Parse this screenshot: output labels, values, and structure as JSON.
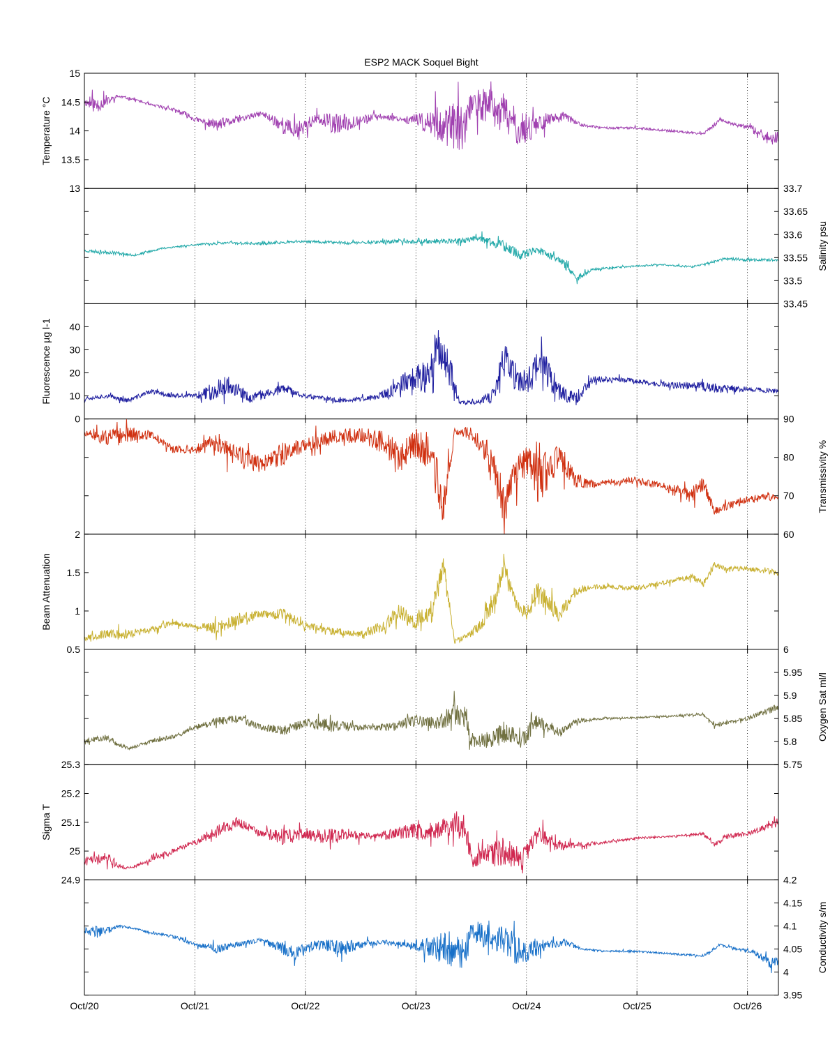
{
  "title": "ESP2 MACK  Soquel Bight",
  "x_axis": {
    "tick_labels": [
      "Oct/20",
      "Oct/21",
      "Oct/22",
      "Oct/23",
      "Oct/24",
      "Oct/25",
      "Oct/26"
    ],
    "tick_days": [
      0,
      1,
      2,
      3,
      4,
      5,
      6
    ],
    "range_days": [
      0,
      6.28
    ]
  },
  "chart_data": [
    {
      "type": "line",
      "ylabel": "Temperature °C",
      "axis_side": "left",
      "color": "#a040b0",
      "ylim": [
        13,
        15
      ],
      "yticks": [
        13,
        13.5,
        14,
        14.5,
        15
      ],
      "ytick_labels": [
        "13",
        "13.5",
        "14",
        "14.5",
        "15"
      ],
      "x": [
        0,
        0.1,
        0.2,
        0.3,
        0.45,
        0.6,
        0.75,
        0.9,
        1.0,
        1.2,
        1.4,
        1.6,
        1.8,
        1.9,
        2.1,
        2.3,
        2.5,
        2.7,
        2.9,
        3.1,
        3.3,
        3.45,
        3.5,
        3.6,
        3.8,
        3.95,
        4.05,
        4.2,
        4.35,
        4.5,
        4.7,
        5.0,
        5.3,
        5.6,
        5.7,
        5.75,
        5.9,
        6.05,
        6.2,
        6.28
      ],
      "y": [
        14.5,
        14.45,
        14.5,
        14.6,
        14.55,
        14.45,
        14.4,
        14.3,
        14.2,
        14.1,
        14.2,
        14.3,
        14.1,
        14.0,
        14.2,
        14.1,
        14.2,
        14.25,
        14.2,
        14.15,
        14.1,
        14.0,
        14.5,
        14.45,
        14.3,
        14.0,
        14.1,
        14.2,
        14.25,
        14.1,
        14.05,
        14.05,
        14.0,
        13.95,
        14.1,
        14.2,
        14.1,
        14.05,
        13.85,
        13.9
      ],
      "noise": [
        0.05,
        0.15,
        0.08,
        0.03,
        0.02,
        0.02,
        0.03,
        0.05,
        0.04,
        0.1,
        0.06,
        0.04,
        0.15,
        0.15,
        0.1,
        0.2,
        0.08,
        0.05,
        0.05,
        0.2,
        0.4,
        0.4,
        0.2,
        0.3,
        0.35,
        0.3,
        0.25,
        0.1,
        0.08,
        0.02,
        0.02,
        0.02,
        0.02,
        0.02,
        0.04,
        0.03,
        0.03,
        0.04,
        0.12,
        0.1
      ],
      "seed": 11
    },
    {
      "type": "line",
      "ylabel": "Salinity psu",
      "axis_side": "right",
      "color": "#20a8a8",
      "ylim": [
        33.45,
        33.7
      ],
      "yticks": [
        33.45,
        33.5,
        33.55,
        33.6,
        33.65,
        33.7
      ],
      "ytick_labels": [
        "33.45",
        "33.5",
        "33.55",
        "33.6",
        "33.65",
        "33.7"
      ],
      "x": [
        0,
        0.3,
        0.45,
        0.7,
        1.0,
        1.3,
        1.6,
        2.0,
        2.4,
        2.8,
        3.2,
        3.6,
        3.8,
        3.95,
        4.1,
        4.3,
        4.45,
        4.6,
        4.9,
        5.2,
        5.5,
        5.8,
        6.0,
        6.28
      ],
      "y": [
        33.565,
        33.56,
        33.555,
        33.57,
        33.578,
        33.582,
        33.58,
        33.585,
        33.582,
        33.585,
        33.585,
        33.59,
        33.575,
        33.555,
        33.565,
        33.545,
        33.505,
        33.525,
        33.53,
        33.535,
        33.53,
        33.548,
        33.545,
        33.545
      ],
      "noise": [
        0.003,
        0.004,
        0.002,
        0.002,
        0.002,
        0.003,
        0.003,
        0.002,
        0.004,
        0.004,
        0.005,
        0.008,
        0.012,
        0.01,
        0.01,
        0.01,
        0.008,
        0.003,
        0.002,
        0.002,
        0.002,
        0.003,
        0.003,
        0.003
      ],
      "seed": 23
    },
    {
      "type": "line",
      "ylabel": "Fluorescence µg l-1",
      "axis_side": "left",
      "color": "#2020a0",
      "ylim": [
        0,
        50
      ],
      "yticks": [
        0,
        10,
        20,
        30,
        40
      ],
      "ytick_labels": [
        "0",
        "10",
        "20",
        "30",
        "40"
      ],
      "x": [
        0,
        0.2,
        0.4,
        0.6,
        0.8,
        1.0,
        1.15,
        1.3,
        1.5,
        1.8,
        2.0,
        2.3,
        2.6,
        2.8,
        2.95,
        3.1,
        3.2,
        3.3,
        3.4,
        3.55,
        3.7,
        3.8,
        3.9,
        4.0,
        4.1,
        4.2,
        4.3,
        4.45,
        4.6,
        4.9,
        5.2,
        5.6,
        5.8,
        6.0,
        6.28
      ],
      "y": [
        9,
        10,
        8,
        12,
        10,
        10,
        12,
        15,
        9,
        13,
        10,
        8,
        9,
        12,
        18,
        18,
        32,
        22,
        7,
        7,
        10,
        26,
        18,
        15,
        24,
        20,
        12,
        9,
        17,
        17,
        15,
        14,
        13,
        13,
        12
      ],
      "noise": [
        1,
        1,
        1,
        1,
        1,
        1,
        4,
        4,
        2,
        2,
        1,
        1,
        1,
        3,
        5,
        7,
        8,
        8,
        1,
        1,
        3,
        8,
        6,
        6,
        8,
        7,
        4,
        3,
        2,
        1,
        1,
        2,
        2,
        1,
        1
      ],
      "seed": 37
    },
    {
      "type": "line",
      "ylabel": "Transmissivity %",
      "axis_side": "right",
      "color": "#d03010",
      "ylim": [
        60,
        90
      ],
      "yticks": [
        60,
        70,
        80,
        90
      ],
      "ytick_labels": [
        "60",
        "70",
        "80",
        "90"
      ],
      "x": [
        0,
        0.2,
        0.4,
        0.6,
        0.8,
        1.0,
        1.2,
        1.4,
        1.6,
        1.8,
        2.0,
        2.2,
        2.5,
        2.7,
        2.85,
        3.0,
        3.15,
        3.25,
        3.35,
        3.5,
        3.6,
        3.7,
        3.8,
        3.9,
        4.0,
        4.1,
        4.3,
        4.45,
        4.6,
        5.0,
        5.3,
        5.5,
        5.6,
        5.7,
        5.8,
        6.0,
        6.28
      ],
      "y": [
        86,
        85,
        86,
        86,
        82,
        82,
        84,
        80,
        78,
        81,
        83,
        85,
        86,
        84,
        80,
        84,
        80,
        66,
        87,
        86,
        83,
        78,
        67,
        76,
        80,
        74,
        80,
        74,
        73,
        74,
        72,
        70,
        73,
        66,
        67,
        69,
        70
      ],
      "noise": [
        1,
        2,
        2,
        1,
        1,
        1,
        3,
        3,
        2,
        3,
        2,
        2,
        2,
        3,
        4,
        4,
        6,
        6,
        1,
        2,
        3,
        5,
        5,
        4,
        5,
        6,
        4,
        2,
        1,
        1,
        1,
        2,
        2,
        1,
        1,
        1,
        1
      ],
      "seed": 51
    },
    {
      "type": "line",
      "ylabel": "Beam Attenuation",
      "axis_side": "left",
      "color": "#c8b030",
      "ylim": [
        0.5,
        2
      ],
      "yticks": [
        0.5,
        1,
        1.5,
        2
      ],
      "ytick_labels": [
        "0.5",
        "1",
        "1.5",
        "2"
      ],
      "x": [
        0,
        0.2,
        0.4,
        0.6,
        0.8,
        1.0,
        1.2,
        1.4,
        1.6,
        1.8,
        2.0,
        2.2,
        2.5,
        2.7,
        2.85,
        3.0,
        3.15,
        3.25,
        3.35,
        3.5,
        3.6,
        3.7,
        3.8,
        3.9,
        4.0,
        4.1,
        4.3,
        4.45,
        4.6,
        5.0,
        5.3,
        5.5,
        5.6,
        5.7,
        5.8,
        6.0,
        6.28
      ],
      "y": [
        0.65,
        0.7,
        0.7,
        0.75,
        0.85,
        0.8,
        0.78,
        0.9,
        0.95,
        0.95,
        0.82,
        0.75,
        0.7,
        0.8,
        1.0,
        0.85,
        1.0,
        1.6,
        0.6,
        0.7,
        0.85,
        1.1,
        1.55,
        1.15,
        0.95,
        1.25,
        0.95,
        1.25,
        1.32,
        1.3,
        1.38,
        1.45,
        1.35,
        1.6,
        1.55,
        1.55,
        1.5
      ],
      "noise": [
        0.03,
        0.06,
        0.06,
        0.04,
        0.04,
        0.03,
        0.08,
        0.08,
        0.05,
        0.08,
        0.04,
        0.05,
        0.04,
        0.08,
        0.1,
        0.1,
        0.15,
        0.15,
        0.03,
        0.05,
        0.08,
        0.12,
        0.12,
        0.1,
        0.12,
        0.15,
        0.1,
        0.05,
        0.03,
        0.03,
        0.03,
        0.04,
        0.04,
        0.04,
        0.03,
        0.03,
        0.04
      ],
      "seed": 67
    },
    {
      "type": "line",
      "ylabel": "Oxygen Sat ml/l",
      "axis_side": "right",
      "color": "#707040",
      "ylim": [
        5.75,
        6
      ],
      "yticks": [
        5.75,
        5.8,
        5.85,
        5.9,
        5.95,
        6
      ],
      "ytick_labels": [
        "5.75",
        "5.8",
        "5.85",
        "5.9",
        "5.95",
        "6"
      ],
      "x": [
        0,
        0.2,
        0.3,
        0.4,
        0.6,
        0.8,
        1.0,
        1.2,
        1.4,
        1.6,
        1.8,
        2.0,
        2.2,
        2.4,
        2.6,
        2.8,
        3.0,
        3.2,
        3.35,
        3.45,
        3.5,
        3.6,
        3.8,
        3.95,
        4.1,
        4.3,
        4.45,
        4.7,
        5.0,
        5.3,
        5.6,
        5.7,
        5.8,
        6.0,
        6.28
      ],
      "y": [
        5.8,
        5.81,
        5.795,
        5.785,
        5.8,
        5.81,
        5.83,
        5.845,
        5.85,
        5.83,
        5.825,
        5.84,
        5.835,
        5.832,
        5.83,
        5.832,
        5.845,
        5.84,
        5.86,
        5.85,
        5.8,
        5.8,
        5.82,
        5.8,
        5.845,
        5.82,
        5.845,
        5.85,
        5.852,
        5.855,
        5.86,
        5.835,
        5.84,
        5.85,
        5.875
      ],
      "noise": [
        0.005,
        0.008,
        0.005,
        0.003,
        0.004,
        0.005,
        0.006,
        0.01,
        0.01,
        0.006,
        0.012,
        0.01,
        0.015,
        0.008,
        0.005,
        0.01,
        0.012,
        0.015,
        0.025,
        0.025,
        0.012,
        0.02,
        0.025,
        0.02,
        0.015,
        0.012,
        0.005,
        0.002,
        0.002,
        0.002,
        0.003,
        0.004,
        0.004,
        0.004,
        0.008
      ],
      "seed": 79
    },
    {
      "type": "line",
      "ylabel": "Sigma T",
      "axis_side": "left",
      "color": "#d02850",
      "ylim": [
        24.9,
        25.3
      ],
      "yticks": [
        24.9,
        25,
        25.1,
        25.2,
        25.3
      ],
      "ytick_labels": [
        "24.9",
        "25",
        "25.1",
        "25.2",
        "25.3"
      ],
      "x": [
        0,
        0.2,
        0.3,
        0.4,
        0.6,
        0.8,
        1.0,
        1.2,
        1.4,
        1.6,
        1.8,
        2.0,
        2.2,
        2.4,
        2.6,
        2.8,
        3.0,
        3.2,
        3.35,
        3.45,
        3.5,
        3.6,
        3.8,
        3.95,
        4.1,
        4.3,
        4.45,
        4.7,
        5.0,
        5.3,
        5.6,
        5.7,
        5.8,
        6.0,
        6.28
      ],
      "y": [
        24.97,
        24.98,
        24.95,
        24.94,
        24.97,
        25.0,
        25.03,
        25.07,
        25.1,
        25.06,
        25.05,
        25.06,
        25.05,
        25.06,
        25.05,
        25.06,
        25.07,
        25.07,
        25.1,
        25.08,
        24.97,
        24.98,
        25.0,
        24.97,
        25.06,
        25.02,
        25.02,
        25.03,
        25.045,
        25.05,
        25.06,
        25.02,
        25.05,
        25.06,
        25.1
      ],
      "noise": [
        0.01,
        0.02,
        0.01,
        0.005,
        0.008,
        0.01,
        0.01,
        0.02,
        0.02,
        0.01,
        0.03,
        0.02,
        0.03,
        0.02,
        0.01,
        0.02,
        0.03,
        0.03,
        0.05,
        0.05,
        0.02,
        0.04,
        0.05,
        0.04,
        0.03,
        0.02,
        0.01,
        0.005,
        0.004,
        0.004,
        0.006,
        0.008,
        0.008,
        0.008,
        0.015
      ],
      "seed": 91
    },
    {
      "type": "line",
      "ylabel": "Conductivity s/m",
      "axis_side": "right",
      "color": "#1870c8",
      "ylim": [
        3.95,
        4.2
      ],
      "yticks": [
        3.95,
        4,
        4.05,
        4.1,
        4.15,
        4.2
      ],
      "ytick_labels": [
        "3.95",
        "4",
        "4.05",
        "4.1",
        "4.15",
        "4.2"
      ],
      "x": [
        0,
        0.1,
        0.2,
        0.3,
        0.45,
        0.6,
        0.75,
        0.9,
        1.0,
        1.2,
        1.4,
        1.6,
        1.8,
        1.9,
        2.1,
        2.3,
        2.5,
        2.7,
        2.9,
        3.1,
        3.3,
        3.45,
        3.5,
        3.6,
        3.8,
        3.95,
        4.05,
        4.2,
        4.35,
        4.5,
        4.7,
        5.0,
        5.3,
        5.6,
        5.7,
        5.75,
        5.9,
        6.05,
        6.2,
        6.28
      ],
      "y": [
        4.09,
        4.085,
        4.09,
        4.1,
        4.095,
        4.085,
        4.08,
        4.07,
        4.06,
        4.05,
        4.06,
        4.07,
        4.05,
        4.04,
        4.06,
        4.05,
        4.06,
        4.065,
        4.06,
        4.055,
        4.05,
        4.04,
        4.09,
        4.085,
        4.07,
        4.04,
        4.05,
        4.06,
        4.065,
        4.05,
        4.045,
        4.045,
        4.04,
        4.035,
        4.05,
        4.06,
        4.05,
        4.045,
        4.02,
        4.025
      ],
      "noise": [
        0.005,
        0.015,
        0.008,
        0.003,
        0.002,
        0.002,
        0.003,
        0.005,
        0.004,
        0.01,
        0.006,
        0.004,
        0.015,
        0.015,
        0.01,
        0.02,
        0.008,
        0.005,
        0.005,
        0.02,
        0.04,
        0.04,
        0.02,
        0.03,
        0.035,
        0.03,
        0.025,
        0.01,
        0.008,
        0.002,
        0.002,
        0.002,
        0.002,
        0.002,
        0.004,
        0.003,
        0.003,
        0.004,
        0.012,
        0.01
      ],
      "seed": 103
    }
  ]
}
